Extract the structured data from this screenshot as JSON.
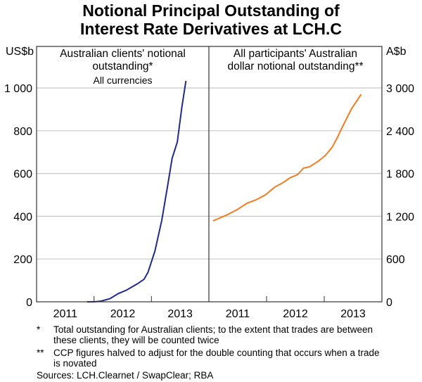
{
  "title_line1": "Notional Principal Outstanding of",
  "title_line2": "Interest Rate Derivatives at LCH.C",
  "chart_data": [
    {
      "type": "line",
      "panel_title": [
        "Australian clients' notional",
        "outstanding*"
      ],
      "panel_subtitle": "All currencies",
      "ylabel": "US$b",
      "ylim": [
        0,
        1000
      ],
      "yticks": [
        0,
        200,
        400,
        600,
        800,
        1000
      ],
      "ytick_labels": [
        "0",
        "200",
        "400",
        "600",
        "800",
        "1 000"
      ],
      "xlim": [
        2011,
        2014
      ],
      "xtick_labels": [
        "2011",
        "2012",
        "2013"
      ],
      "grid": true,
      "color": "#1f2a8a",
      "x": [
        2011.88,
        2012.0,
        2012.12,
        2012.28,
        2012.42,
        2012.57,
        2012.76,
        2012.87,
        2012.94,
        2013.06,
        2013.18,
        2013.29,
        2013.36,
        2013.45,
        2013.53,
        2013.6
      ],
      "y": [
        0,
        0,
        3,
        15,
        38,
        55,
        85,
        105,
        138,
        237,
        381,
        556,
        671,
        747,
        911,
        1033
      ]
    },
    {
      "type": "line",
      "panel_title": [
        "All participants' Australian",
        "dollar notional outstanding**"
      ],
      "ylabel": "A$b",
      "ylim": [
        0,
        3000
      ],
      "yticks": [
        0,
        600,
        1200,
        1800,
        2400,
        3000
      ],
      "ytick_labels": [
        "0",
        "600",
        "1 200",
        "1 800",
        "2 400",
        "3 000"
      ],
      "xlim": [
        2011,
        2014
      ],
      "xtick_labels": [
        "2011",
        "2012",
        "2013"
      ],
      "grid": true,
      "color": "#f47b20",
      "x": [
        2011.07,
        2011.3,
        2011.49,
        2011.66,
        2011.82,
        2011.98,
        2012.14,
        2012.3,
        2012.4,
        2012.54,
        2012.64,
        2012.75,
        2012.9,
        2013.02,
        2013.14,
        2013.23,
        2013.3,
        2013.47,
        2013.64
      ],
      "y": [
        1135,
        1214,
        1293,
        1382,
        1431,
        1500,
        1608,
        1678,
        1737,
        1786,
        1875,
        1895,
        1974,
        2053,
        2171,
        2309,
        2428,
        2704,
        2911
      ]
    }
  ],
  "footnotes": [
    {
      "mark": "*",
      "text": "Total outstanding for Australian clients; to the extent that trades are between these clients, they will be counted twice"
    },
    {
      "mark": "**",
      "text": "CCP figures halved to adjust for the double counting that occurs when a trade is novated"
    }
  ],
  "sources": "Sources: LCH.Clearnet / SwapClear; RBA"
}
